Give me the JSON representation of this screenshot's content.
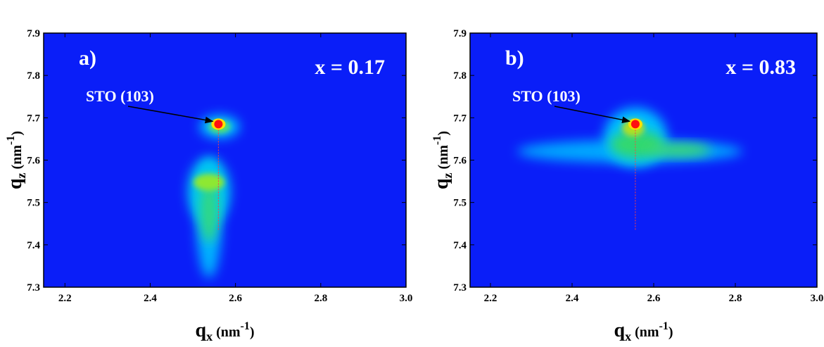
{
  "chart_data": [
    {
      "type": "heatmap",
      "panel_label": "a)",
      "annotation": "x = 0.17",
      "peak_label": "STO (103)",
      "peak": {
        "x": 2.56,
        "y": 7.685
      },
      "xlim": [
        2.15,
        3.0
      ],
      "ylim": [
        7.3,
        7.9
      ],
      "xticks": [
        2.2,
        2.4,
        2.6,
        2.8,
        {
          "value": 3,
          "label": "3.0"
        }
      ],
      "yticks": [
        7.3,
        7.4,
        7.5,
        7.6,
        7.7,
        7.8,
        7.9
      ],
      "xlabel": [
        "q",
        "x",
        " (nm",
        "-1",
        ")"
      ],
      "ylabel": [
        "q",
        "z",
        " (nm",
        "-1",
        ")"
      ]
    },
    {
      "type": "heatmap",
      "panel_label": "b)",
      "annotation": "x = 0.83",
      "peak_label": "STO (103)",
      "peak": {
        "x": 2.555,
        "y": 7.685
      },
      "xlim": [
        2.15,
        3.0
      ],
      "ylim": [
        7.3,
        7.9
      ],
      "xticks": [
        2.2,
        2.4,
        2.6,
        2.8,
        {
          "value": 3,
          "label": "3.0"
        }
      ],
      "yticks": [
        7.3,
        7.4,
        7.5,
        7.6,
        7.7,
        7.8,
        7.9
      ],
      "xlabel": [
        "q",
        "x",
        " (nm",
        "-1",
        ")"
      ],
      "ylabel": [
        "q",
        "z",
        " (nm",
        "-1",
        ")"
      ]
    }
  ]
}
